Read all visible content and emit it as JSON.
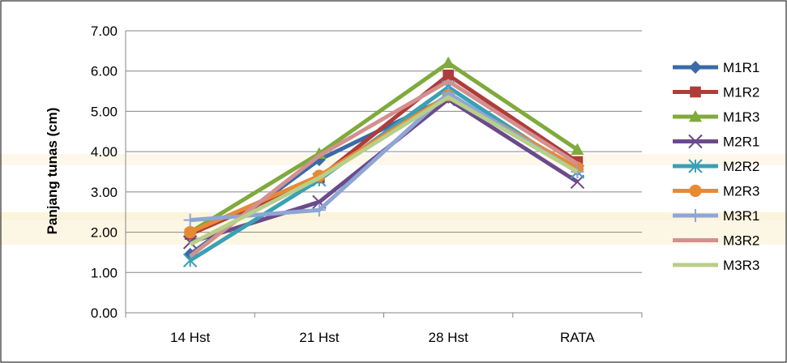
{
  "chart_data": {
    "type": "line",
    "categories": [
      "14 Hst",
      "21 Hst",
      "28 Hst",
      "RATA"
    ],
    "ylabel": "Panjang tunas (cm)",
    "xlabel": "",
    "ylim": [
      0,
      7
    ],
    "yticks": [
      "0.00",
      "1.00",
      "2.00",
      "3.00",
      "4.00",
      "5.00",
      "6.00",
      "7.00"
    ],
    "grid": true,
    "legend_position": "right",
    "series": [
      {
        "name": "M1R1",
        "values": [
          1.45,
          3.8,
          5.35,
          3.55
        ],
        "color": "#3a6aa8",
        "marker": "diamond"
      },
      {
        "name": "M1R2",
        "values": [
          1.95,
          3.35,
          5.9,
          3.75
        ],
        "color": "#b03c3a",
        "marker": "square"
      },
      {
        "name": "M1R3",
        "values": [
          2.0,
          3.95,
          6.2,
          4.05
        ],
        "color": "#7faa3c",
        "marker": "triangle"
      },
      {
        "name": "M2R1",
        "values": [
          1.75,
          2.75,
          5.3,
          3.25
        ],
        "color": "#6b4a8c",
        "marker": "x"
      },
      {
        "name": "M2R2",
        "values": [
          1.3,
          3.3,
          5.6,
          3.5
        ],
        "color": "#3aa0b5",
        "marker": "star"
      },
      {
        "name": "M2R3",
        "values": [
          2.0,
          3.4,
          5.4,
          3.6
        ],
        "color": "#e88a34",
        "marker": "circle"
      },
      {
        "name": "M3R1",
        "values": [
          2.3,
          2.55,
          5.45,
          3.5
        ],
        "color": "#8ea6d3",
        "marker": "plus"
      },
      {
        "name": "M3R2",
        "values": [
          1.4,
          3.9,
          5.75,
          3.7
        ],
        "color": "#d39090",
        "marker": "none"
      },
      {
        "name": "M3R3",
        "values": [
          1.7,
          3.35,
          5.35,
          3.5
        ],
        "color": "#b8cf8a",
        "marker": "none"
      }
    ]
  }
}
